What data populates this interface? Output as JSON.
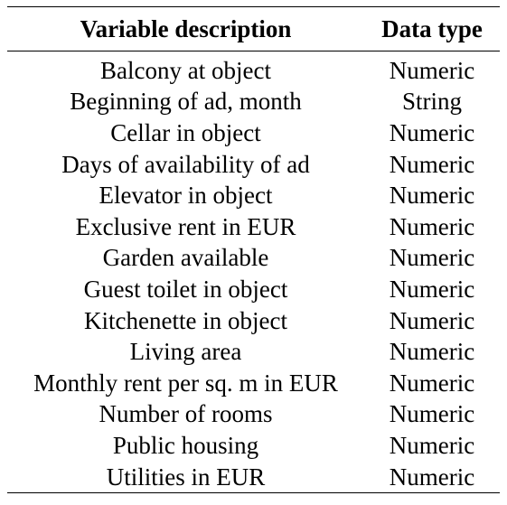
{
  "table": {
    "headers": [
      "Variable description",
      "Data type"
    ],
    "rows": [
      [
        "Balcony at object",
        "Numeric"
      ],
      [
        "Beginning of ad, month",
        "String"
      ],
      [
        "Cellar in object",
        "Numeric"
      ],
      [
        "Days of availability of ad",
        "Numeric"
      ],
      [
        "Elevator in object",
        "Numeric"
      ],
      [
        "Exclusive rent in EUR",
        "Numeric"
      ],
      [
        "Garden available",
        "Numeric"
      ],
      [
        "Guest toilet in object",
        "Numeric"
      ],
      [
        "Kitchenette in object",
        "Numeric"
      ],
      [
        "Living area",
        "Numeric"
      ],
      [
        "Monthly rent per sq. m in EUR",
        "Numeric"
      ],
      [
        "Number of rooms",
        "Numeric"
      ],
      [
        "Public housing",
        "Numeric"
      ],
      [
        "Utilities in EUR",
        "Numeric"
      ]
    ]
  }
}
